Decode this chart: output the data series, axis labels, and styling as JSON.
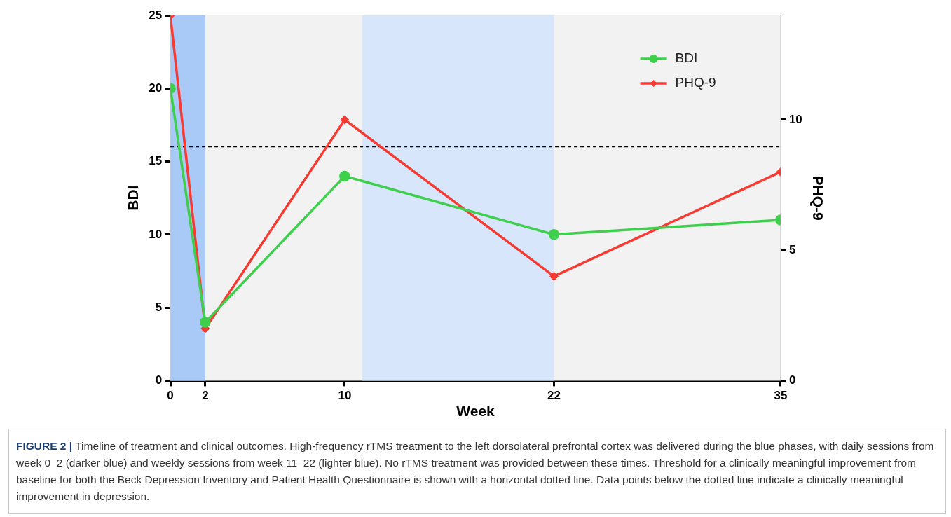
{
  "chart_data": {
    "type": "line",
    "xlabel": "Week",
    "ylabel": "BDI",
    "y2label": "PHQ-9",
    "x": [
      0,
      2,
      10,
      22,
      35
    ],
    "xlim": [
      0,
      35
    ],
    "xticks": [
      0,
      2,
      10,
      22,
      35
    ],
    "ylim": [
      0,
      25
    ],
    "yticks": [
      0,
      5,
      10,
      15,
      20,
      25
    ],
    "y2lim": [
      0,
      14
    ],
    "y2ticks": [
      0,
      5,
      10
    ],
    "series": [
      {
        "name": "BDI",
        "color": "#3ecf4c",
        "values": [
          20,
          4,
          14,
          10,
          11
        ],
        "marker": "circle"
      },
      {
        "name": "PHQ-9",
        "color": "#f73a32",
        "values": [
          14,
          2,
          10,
          4,
          8
        ],
        "axis": "y2",
        "marker": "diamond"
      }
    ],
    "bands": [
      {
        "axis": "x",
        "from": 0,
        "to": 2,
        "color": "#a9c9f7"
      },
      {
        "axis": "x",
        "from": 11,
        "to": 22,
        "color": "#d7e6fa"
      }
    ],
    "ref_lines": [
      {
        "axis": "y",
        "value": 16,
        "line_style": "dashed",
        "color": "#000000"
      }
    ],
    "legend": "top right",
    "line_style": "solid",
    "annotations": [
      "FIGURE 2 | Timeline of treatment and clinical outcomes. High-frequency rTMS treatment to the left dorsolateral prefrontal cortex was delivered during the blue phases, with daily sessions from week 0–2 (darker blue) and weekly sessions from week 11–22 (lighter blue). No rTMS treatment was provided between these times. Threshold for a clinically meaningful improvement from baseline for both the Beck Depression Inventory and Patient Health Questionnaire is shown with a horizontal dotted line. Data points below the dotted line indicate a clinically meaningful improvement in depression."
    ]
  }
}
